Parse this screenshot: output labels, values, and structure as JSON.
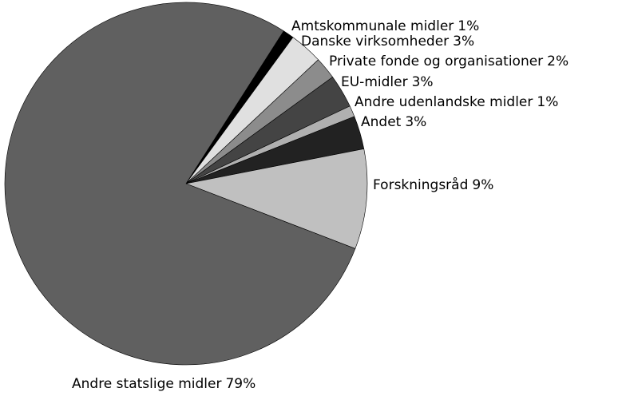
{
  "chart_data": {
    "type": "pie",
    "categories": [
      "Amtskommunale midler",
      "Danske virksomheder",
      "Private fonde og organisationer",
      "EU-midler",
      "Andre udenlandske midler",
      "Andet",
      "Forskningsråd",
      "Andre statslige midler"
    ],
    "values": [
      1,
      3,
      2,
      3,
      1,
      3,
      9,
      79
    ],
    "value_labels": [
      "1%",
      "3%",
      "2%",
      "3%",
      "1%",
      "3%",
      "9%",
      "79%"
    ],
    "colors": [
      "#000000",
      "#e0e0e0",
      "#8c8c8c",
      "#444444",
      "#b0b0b0",
      "#222222",
      "#c0c0c0",
      "#606060"
    ]
  }
}
